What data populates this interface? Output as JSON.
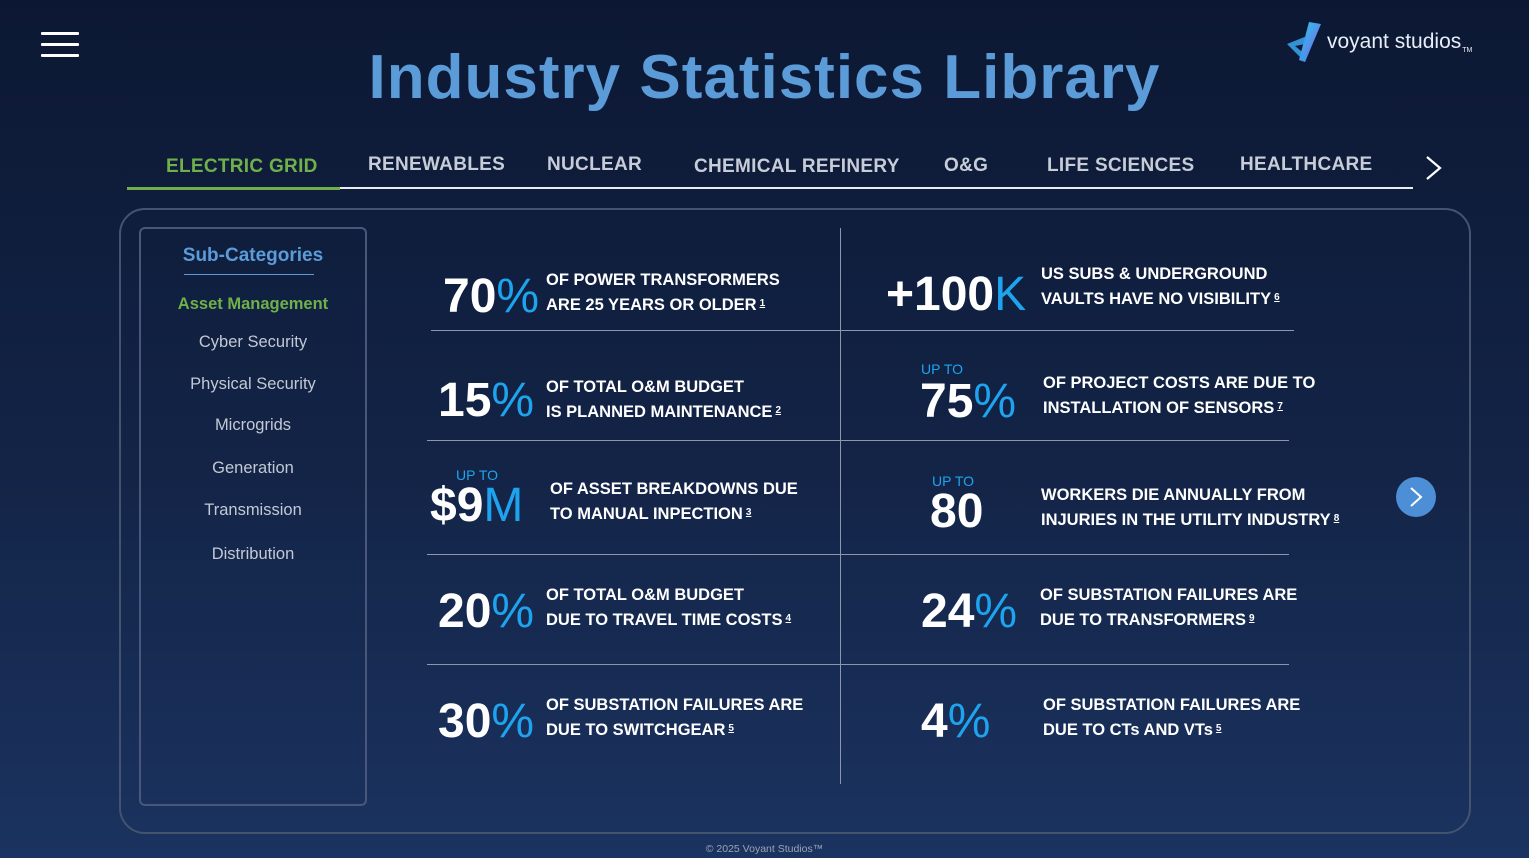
{
  "header": {
    "title": "Industry Statistics Library",
    "logo_text": "voyant studios",
    "logo_tm": "TM"
  },
  "tabs": [
    {
      "label": "ELECTRIC GRID",
      "active": true
    },
    {
      "label": "RENEWABLES"
    },
    {
      "label": "NUCLEAR"
    },
    {
      "label": "CHEMICAL REFINERY"
    },
    {
      "label": "O&G"
    },
    {
      "label": "LIFE SCIENCES"
    },
    {
      "label": "HEALTHCARE"
    }
  ],
  "sidebar": {
    "heading": "Sub-Categories",
    "items": [
      {
        "label": "Asset Management",
        "active": true
      },
      {
        "label": "Cyber Security"
      },
      {
        "label": "Physical Security"
      },
      {
        "label": "Microgrids"
      },
      {
        "label": "Generation"
      },
      {
        "label": "Transmission"
      },
      {
        "label": "Distribution"
      }
    ]
  },
  "stats": [
    {
      "upto": "",
      "value": "70",
      "unit": "%",
      "line1": "OF POWER TRANSFORMERS",
      "line2": "ARE 25 YEARS OR OLDER",
      "ref": "1"
    },
    {
      "upto": "",
      "value": "+100",
      "unit": "K",
      "line1": "US SUBS & UNDERGROUND",
      "line2": "VAULTS HAVE NO VISIBILITY",
      "ref": "6"
    },
    {
      "upto": "",
      "value": "15",
      "unit": "%",
      "line1": "OF TOTAL O&M BUDGET",
      "line2": "IS PLANNED MAINTENANCE",
      "ref": "2"
    },
    {
      "upto": "UP TO",
      "value": "75",
      "unit": "%",
      "line1": "OF PROJECT COSTS ARE DUE TO",
      "line2": "INSTALLATION OF SENSORS",
      "ref": "7"
    },
    {
      "upto": "UP TO",
      "value": "$9",
      "unit": "M",
      "line1": "OF ASSET BREAKDOWNS DUE",
      "line2": "TO MANUAL INPECTION",
      "ref": "3"
    },
    {
      "upto": "UP TO",
      "value": "80",
      "unit": "",
      "line1": "WORKERS DIE ANNUALLY FROM",
      "line2": "INJURIES IN THE UTILITY INDUSTRY",
      "ref": "8"
    },
    {
      "upto": "",
      "value": "20",
      "unit": "%",
      "line1": "OF TOTAL O&M BUDGET",
      "line2": "DUE TO TRAVEL TIME COSTS",
      "ref": "4"
    },
    {
      "upto": "",
      "value": "24",
      "unit": "%",
      "line1": "OF SUBSTATION FAILURES ARE",
      "line2": "DUE TO TRANSFORMERS",
      "ref": "9"
    },
    {
      "upto": "",
      "value": "30",
      "unit": "%",
      "line1": "OF SUBSTATION FAILURES ARE",
      "line2": "DUE TO SWITCHGEAR",
      "ref": "5"
    },
    {
      "upto": "",
      "value": "4",
      "unit": "%",
      "line1": "OF SUBSTATION FAILURES ARE",
      "line2": "DUE TO CTs AND VTs",
      "ref": "5"
    }
  ],
  "footer": "© 2025 Voyant Studios™"
}
